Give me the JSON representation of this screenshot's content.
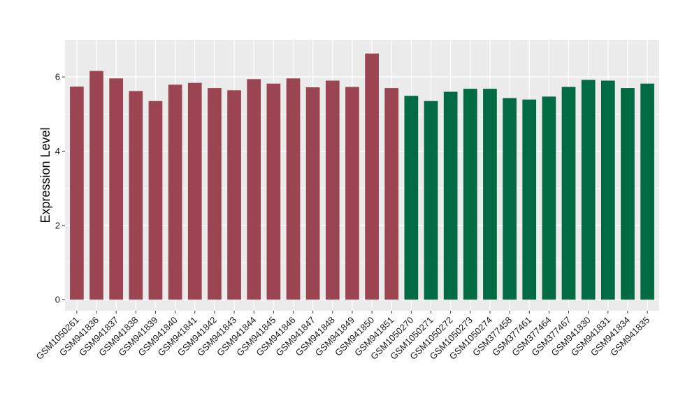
{
  "chart_data": {
    "type": "bar",
    "title": "",
    "xlabel": "",
    "ylabel": "Expression Level",
    "ylim": [
      -0.3,
      7.0
    ],
    "yticks": [
      0,
      2,
      4,
      6
    ],
    "grid": true,
    "legend": "none",
    "colors": {
      "group1": "#9B4452",
      "group2": "#006A43",
      "panel": "#EBEBEB",
      "grid": "#FFFFFF"
    },
    "categories": [
      "GSM1050261",
      "GSM941836",
      "GSM941837",
      "GSM941838",
      "GSM941839",
      "GSM941840",
      "GSM941841",
      "GSM941842",
      "GSM941843",
      "GSM941844",
      "GSM941845",
      "GSM941846",
      "GSM941847",
      "GSM941848",
      "GSM941849",
      "GSM941850",
      "GSM941851",
      "GSM1050270",
      "GSM1050271",
      "GSM1050272",
      "GSM1050273",
      "GSM1050274",
      "GSM377458",
      "GSM377461",
      "GSM377464",
      "GSM377467",
      "GSM941830",
      "GSM941831",
      "GSM941834",
      "GSM941835"
    ],
    "values": [
      5.74,
      6.16,
      5.96,
      5.62,
      5.35,
      5.79,
      5.84,
      5.7,
      5.64,
      5.94,
      5.82,
      5.96,
      5.72,
      5.9,
      5.73,
      6.63,
      5.7,
      5.49,
      5.35,
      5.6,
      5.68,
      5.68,
      5.43,
      5.39,
      5.47,
      5.73,
      5.92,
      5.9,
      5.7,
      5.82
    ],
    "groups": [
      "group1",
      "group1",
      "group1",
      "group1",
      "group1",
      "group1",
      "group1",
      "group1",
      "group1",
      "group1",
      "group1",
      "group1",
      "group1",
      "group1",
      "group1",
      "group1",
      "group1",
      "group2",
      "group2",
      "group2",
      "group2",
      "group2",
      "group2",
      "group2",
      "group2",
      "group2",
      "group2",
      "group2",
      "group2",
      "group2"
    ]
  }
}
